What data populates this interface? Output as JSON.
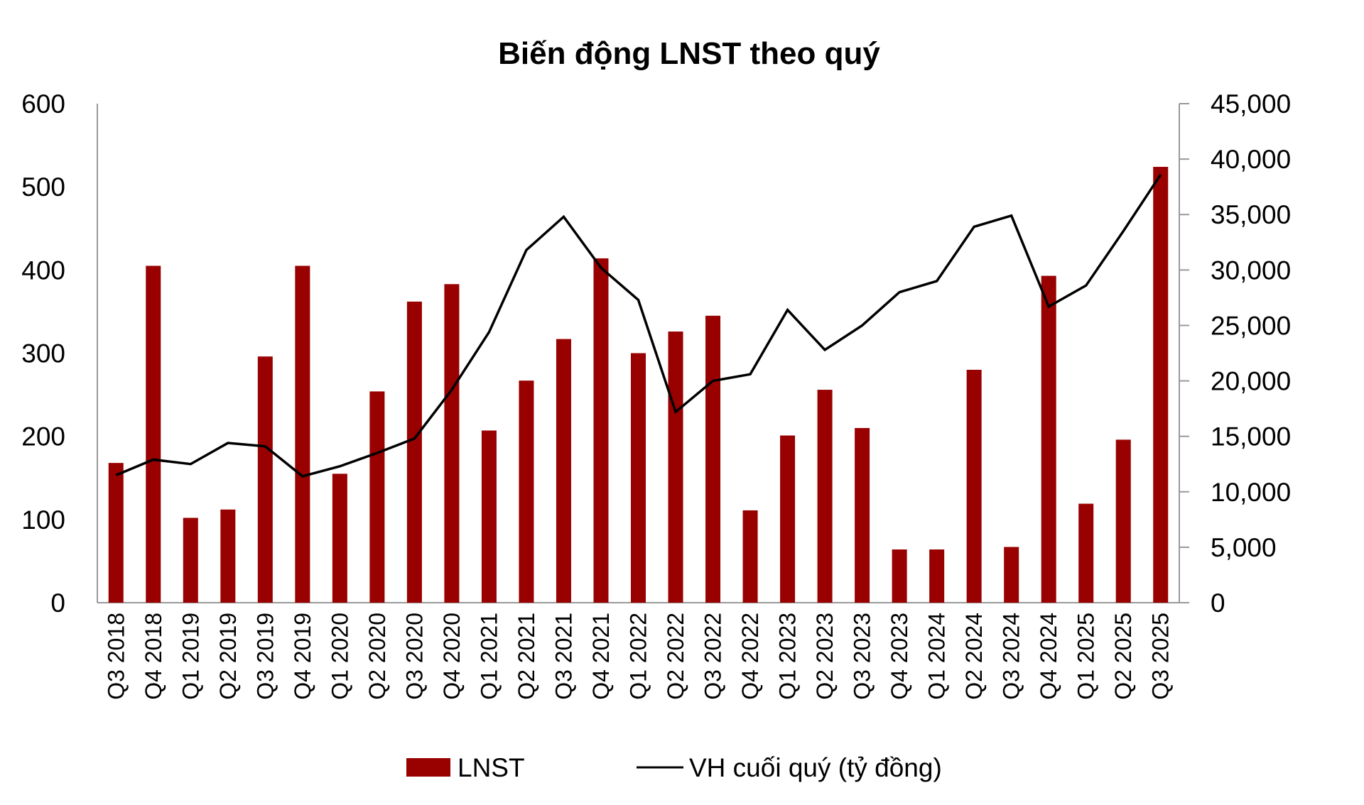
{
  "chart_data": {
    "type": "bar+line",
    "title": "Biến động LNST theo quý",
    "categories": [
      "Q3 2018",
      "Q4 2018",
      "Q1 2019",
      "Q2 2019",
      "Q3 2019",
      "Q4 2019",
      "Q1 2020",
      "Q2 2020",
      "Q3 2020",
      "Q4 2020",
      "Q1 2021",
      "Q2 2021",
      "Q3 2021",
      "Q4 2021",
      "Q1 2022",
      "Q2 2022",
      "Q3 2022",
      "Q4 2022",
      "Q1 2023",
      "Q2 2023",
      "Q3 2023",
      "Q4 2023",
      "Q1 2024",
      "Q2 2024",
      "Q3 2024",
      "Q4 2024",
      "Q1 2025",
      "Q2 2025",
      "Q3 2025"
    ],
    "series": [
      {
        "name": "LNST",
        "type": "bar",
        "axis": "left",
        "color": "#990000",
        "values": [
          168,
          405,
          102,
          112,
          296,
          405,
          155,
          254,
          362,
          383,
          207,
          267,
          317,
          414,
          300,
          326,
          345,
          111,
          201,
          256,
          210,
          64,
          64,
          280,
          67,
          393,
          119,
          196,
          524
        ]
      },
      {
        "name": "VH cuối quý (tỷ đồng)",
        "type": "line",
        "axis": "right",
        "color": "#000000",
        "values": [
          11500,
          12900,
          12500,
          14400,
          14100,
          11400,
          12300,
          13500,
          14800,
          19200,
          24400,
          31800,
          34800,
          30200,
          27300,
          17200,
          20000,
          20600,
          26400,
          22800,
          25000,
          28000,
          29000,
          33900,
          34900,
          26700,
          28600,
          33500,
          38600
        ]
      }
    ],
    "y_left": {
      "range": [
        0,
        600
      ],
      "ticks": [
        "0",
        "100",
        "200",
        "300",
        "400",
        "500",
        "600"
      ]
    },
    "y_right": {
      "range": [
        0,
        45000
      ],
      "ticks": [
        "0",
        "5,000",
        "10,000",
        "15,000",
        "20,000",
        "25,000",
        "30,000",
        "35,000",
        "40,000",
        "45,000"
      ]
    },
    "grid": false,
    "legend": "bottom"
  }
}
